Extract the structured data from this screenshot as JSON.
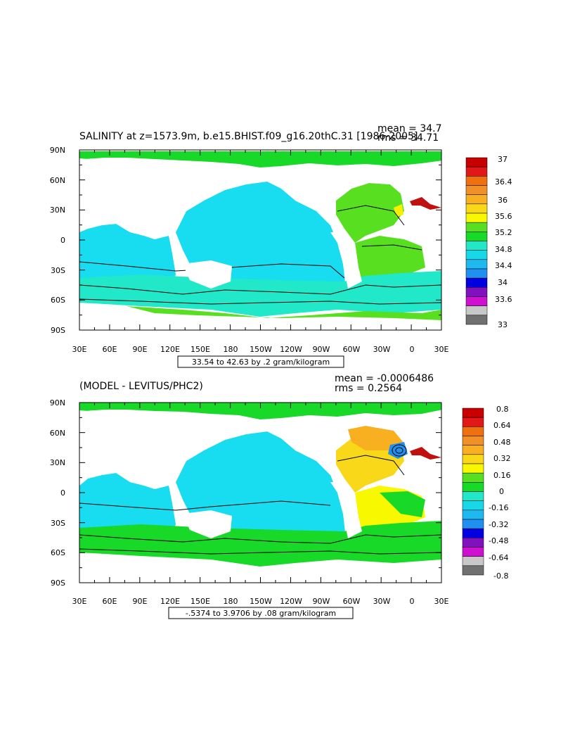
{
  "top_panel": {
    "title": "SALINITY at z=1573.9m, b.e15.BHIST.f09_g16.20thC.31 [1986-2005]",
    "mean_label": "mean = 34.7",
    "rms_label": "rms = 34.71",
    "lat_labels": [
      "90N",
      "60N",
      "30N",
      "0",
      "30S",
      "60S",
      "90S"
    ],
    "lon_labels": [
      "30E",
      "60E",
      "90E",
      "120E",
      "150E",
      "180",
      "150W",
      "120W",
      "90W",
      "60W",
      "30W",
      "0",
      "30E"
    ],
    "range_label": "33.54 to 42.63 by .2 gram/kilogram",
    "colorbar": {
      "labels": [
        "37",
        "36.4",
        "36",
        "35.6",
        "35.2",
        "34.8",
        "34.4",
        "34",
        "33.6",
        "33"
      ],
      "colors": [
        "#c80000",
        "#e01818",
        "#f07010",
        "#f09028",
        "#f8b020",
        "#f8d818",
        "#f8f800",
        "#58e020",
        "#18d828",
        "#20e8c8",
        "#18d8e8",
        "#20b8f0",
        "#2090f0",
        "#0000e0",
        "#8010c0",
        "#d010d0",
        "#c8c8c8",
        "#707070"
      ]
    },
    "legend_fill_colors": {
      "main": "#18dcf0",
      "mid": "#10e8c8",
      "high": "#50e020",
      "very_high": "#f8f000",
      "max": "#c01010",
      "low": "#c000c0"
    }
  },
  "bottom_panel": {
    "title": "(MODEL - LEVITUS/PHC2)",
    "mean_label": "mean = -0.0006486",
    "rms_label": "rms = 0.2564",
    "lat_labels": [
      "90N",
      "60N",
      "30N",
      "0",
      "30S",
      "60S",
      "90S"
    ],
    "lon_labels": [
      "30E",
      "60E",
      "90E",
      "120E",
      "150E",
      "180",
      "150W",
      "120W",
      "90W",
      "60W",
      "30W",
      "0",
      "30E"
    ],
    "range_label": "-.5374 to 3.9706 by .08 gram/kilogram",
    "colorbar": {
      "labels": [
        "0.8",
        "0.64",
        "0.48",
        "0.32",
        "0.16",
        "0",
        "-0.16",
        "-0.32",
        "-0.48",
        "-0.64",
        "-0.8"
      ],
      "colors": [
        "#c80000",
        "#e01818",
        "#f07010",
        "#f09028",
        "#f8b020",
        "#f8d818",
        "#f8f800",
        "#58e020",
        "#18d828",
        "#20e8c8",
        "#18d8e8",
        "#20b8f0",
        "#2090f0",
        "#0000e0",
        "#8010c0",
        "#d010d0",
        "#c8c8c8",
        "#707070"
      ]
    }
  }
}
